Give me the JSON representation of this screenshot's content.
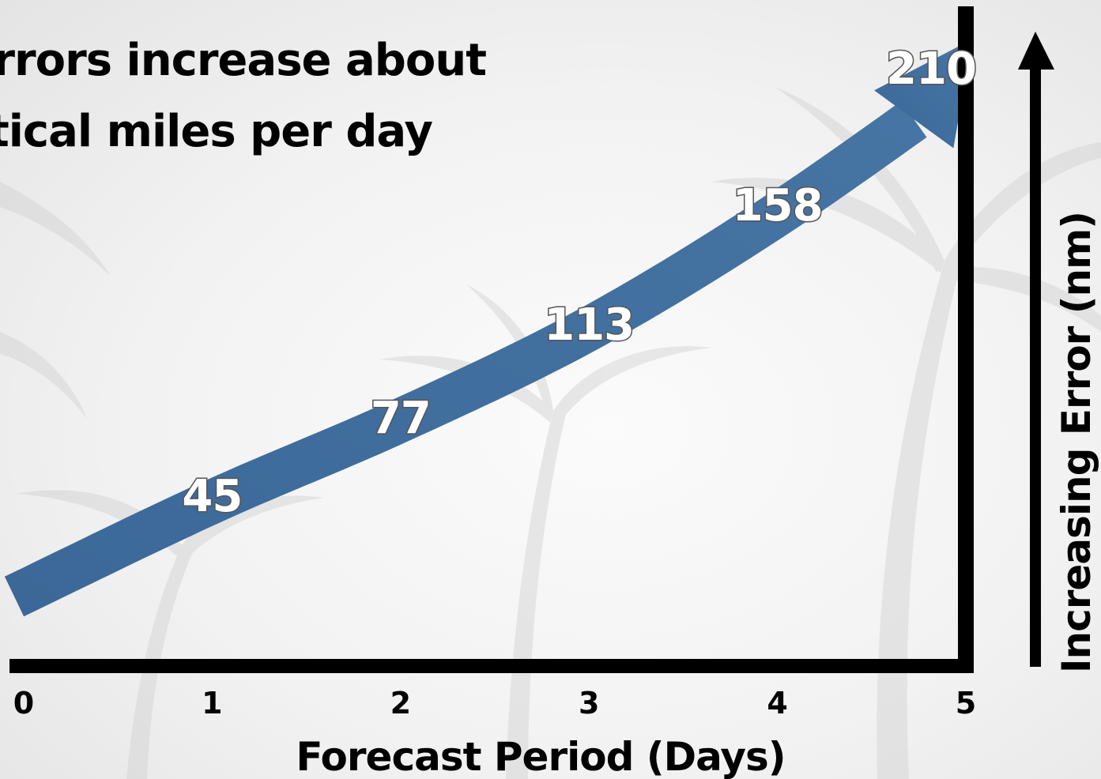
{
  "title": {
    "line1": "rrors increase about",
    "line2": "tical miles per day"
  },
  "chart_data": {
    "type": "line",
    "x": [
      1,
      2,
      3,
      4,
      5
    ],
    "values": [
      45,
      77,
      113,
      158,
      210
    ],
    "xticks": [
      0,
      1,
      2,
      3,
      4,
      5
    ],
    "xlim": [
      0,
      5
    ],
    "xlabel": "Forecast Period (Days)",
    "ylabel": "Increasing Error (nm)",
    "grid": false,
    "arrow_color": "#41709e"
  }
}
